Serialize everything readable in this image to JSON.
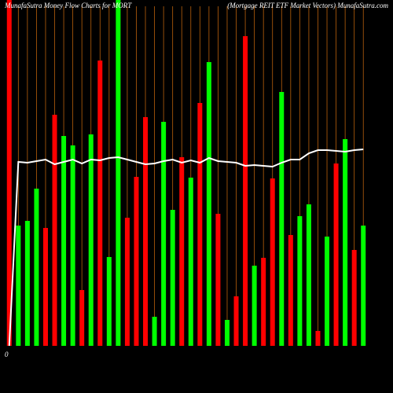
{
  "chart_data": {
    "type": "bar",
    "title": "MunafaSutra  Money Flow  Charts for MORT",
    "subtitle": "(Mortgage    REIT ETF Market Vectors) MunafaSutra.com",
    "categories": [
      null,
      null,
      null,
      null,
      null,
      null,
      null,
      null,
      null,
      null,
      null,
      null,
      null,
      null,
      null,
      null,
      null,
      null,
      null,
      null,
      null,
      null,
      null,
      null,
      null,
      null,
      null,
      null,
      null,
      null,
      null,
      null,
      null,
      null,
      null,
      null,
      null,
      null,
      null,
      null
    ],
    "values": [
      440,
      153,
      159,
      200,
      150,
      294,
      267,
      255,
      71,
      269,
      363,
      113,
      440,
      163,
      215,
      291,
      37,
      285,
      173,
      240,
      214,
      309,
      361,
      168,
      33,
      63,
      394,
      102,
      112,
      213,
      323,
      141,
      165,
      180,
      19,
      139,
      232,
      263,
      122,
      153
    ],
    "colors": [
      "#ff0000",
      "#00ff00",
      "#00ff00",
      "#00ff00",
      "#ff0000",
      "#ff0000",
      "#00ff00",
      "#00ff00",
      "#ff0000",
      "#00ff00",
      "#ff0000",
      "#00ff00",
      "#00ff00",
      "#ff0000",
      "#ff0000",
      "#ff0000",
      "#00ff00",
      "#00ff00",
      "#00ff00",
      "#ff0000",
      "#00ff00",
      "#ff0000",
      "#00ff00",
      "#ff0000",
      "#00ff00",
      "#ff0000",
      "#ff0000",
      "#00ff00",
      "#ff0000",
      "#ff0000",
      "#00ff00",
      "#ff0000",
      "#00ff00",
      "#00ff00",
      "#ff0000",
      "#00ff00",
      "#ff0000",
      "#00ff00",
      "#ff0000",
      "#00ff00"
    ],
    "line": {
      "color": "#ffffff",
      "values": [
        0,
        234,
        233,
        235,
        237,
        231,
        234,
        237,
        232,
        237,
        236,
        239,
        240,
        237,
        234,
        231,
        232,
        235,
        237,
        233,
        236,
        233,
        239,
        235,
        234,
        233,
        229,
        230,
        229,
        228,
        233,
        237,
        237,
        245,
        249,
        249,
        248,
        247,
        249,
        250
      ]
    },
    "ylim": [
      0,
      440
    ],
    "yticks": [
      0
    ],
    "grid_color": "#b8600c"
  }
}
